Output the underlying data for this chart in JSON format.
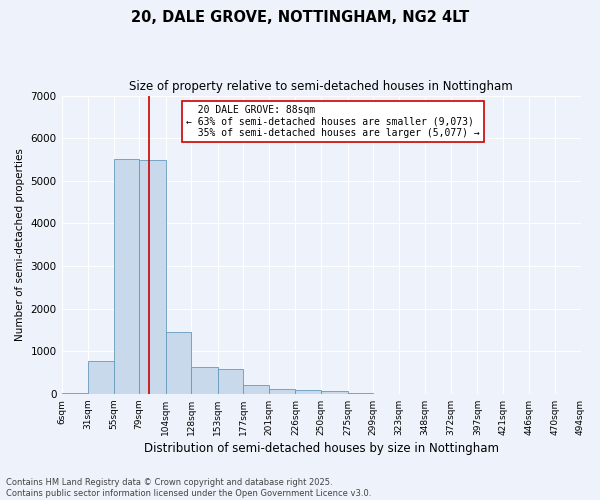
{
  "title": "20, DALE GROVE, NOTTINGHAM, NG2 4LT",
  "subtitle": "Size of property relative to semi-detached houses in Nottingham",
  "xlabel": "Distribution of semi-detached houses by size in Nottingham",
  "ylabel": "Number of semi-detached properties",
  "bins": [
    "6sqm",
    "31sqm",
    "55sqm",
    "79sqm",
    "104sqm",
    "128sqm",
    "153sqm",
    "177sqm",
    "201sqm",
    "226sqm",
    "250sqm",
    "275sqm",
    "299sqm",
    "323sqm",
    "348sqm",
    "372sqm",
    "397sqm",
    "421sqm",
    "446sqm",
    "470sqm",
    "494sqm"
  ],
  "bin_edges": [
    6,
    31,
    55,
    79,
    104,
    128,
    153,
    177,
    201,
    226,
    250,
    275,
    299,
    323,
    348,
    372,
    397,
    421,
    446,
    470,
    494
  ],
  "values": [
    10,
    770,
    5500,
    5480,
    1450,
    620,
    580,
    200,
    120,
    85,
    55,
    10,
    0,
    0,
    0,
    0,
    0,
    0,
    0,
    0
  ],
  "bar_color": "#c8d9eb",
  "bar_edge_color": "#6699bb",
  "property_size": 88,
  "property_label": "20 DALE GROVE: 88sqm",
  "pct_smaller": 63,
  "pct_smaller_count": "9,073",
  "pct_larger": 35,
  "pct_larger_count": "5,077",
  "vline_color": "#cc0000",
  "annotation_box_color": "#cc0000",
  "bg_color": "#eef2fa",
  "plot_bg_color": "#eef2fa",
  "ylim": [
    0,
    7000
  ],
  "yticks": [
    0,
    1000,
    2000,
    3000,
    4000,
    5000,
    6000,
    7000
  ],
  "footer_line1": "Contains HM Land Registry data © Crown copyright and database right 2025.",
  "footer_line2": "Contains public sector information licensed under the Open Government Licence v3.0."
}
